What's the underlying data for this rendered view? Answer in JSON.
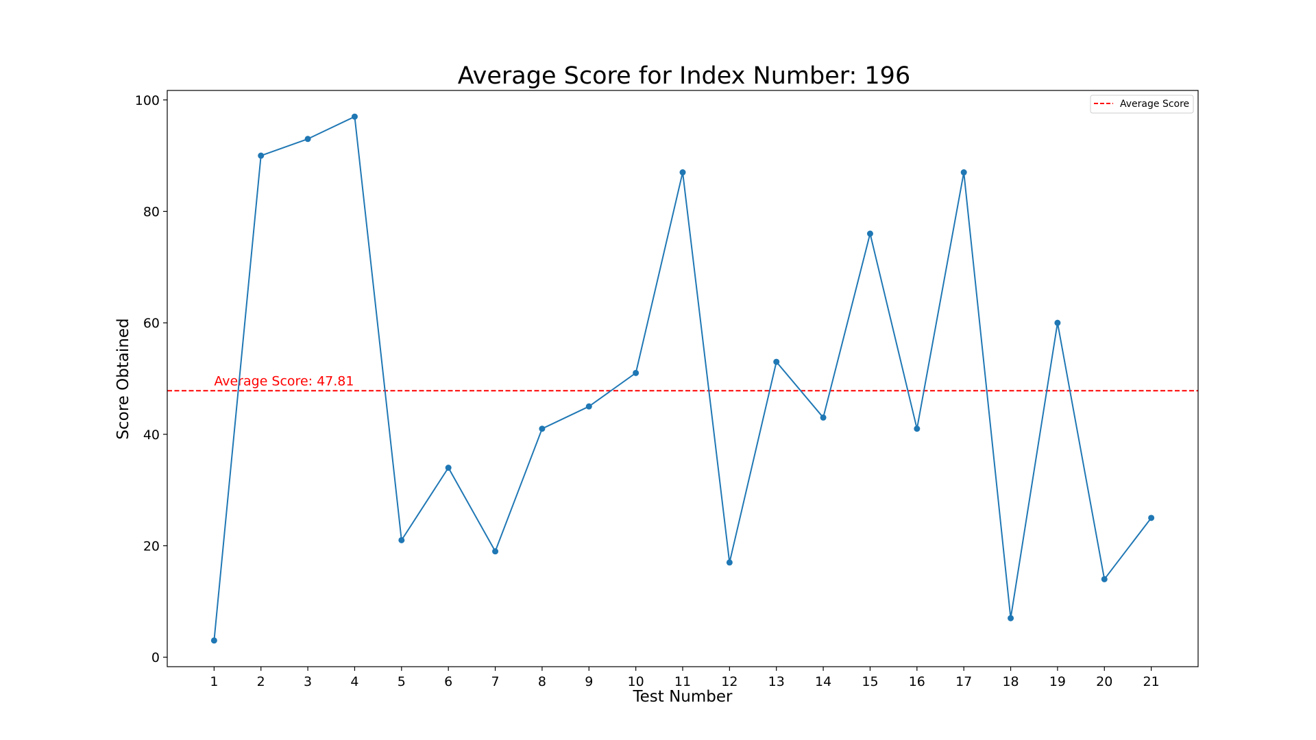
{
  "chart_data": {
    "type": "line",
    "title": "Average Score for Index Number: 196",
    "xlabel": "Test Number",
    "ylabel": "Score Obtained",
    "x": [
      1,
      2,
      3,
      4,
      5,
      6,
      7,
      8,
      9,
      10,
      11,
      12,
      13,
      14,
      15,
      16,
      17,
      18,
      19,
      20,
      21
    ],
    "series": [
      {
        "values": [
          3,
          90,
          93,
          97,
          21,
          34,
          19,
          41,
          45,
          51,
          87,
          17,
          53,
          43,
          76,
          41,
          87,
          7,
          60,
          14,
          25
        ],
        "color": "#1f77b4",
        "marker": "circle"
      }
    ],
    "reference_line": {
      "name": "Average Score",
      "value": 47.81,
      "label": "Average Score: 47.81",
      "color": "#ff0000",
      "style": "dashed"
    },
    "xticks": [
      1,
      2,
      3,
      4,
      5,
      6,
      7,
      8,
      9,
      10,
      11,
      12,
      13,
      14,
      15,
      16,
      17,
      18,
      19,
      20,
      21
    ],
    "yticks": [
      0,
      20,
      40,
      60,
      80,
      100
    ],
    "xlim": [
      0,
      22
    ],
    "ylim": [
      -1.7,
      101.7
    ],
    "grid": false,
    "legend": {
      "position": "top-right",
      "entries": [
        "Average Score"
      ]
    }
  }
}
